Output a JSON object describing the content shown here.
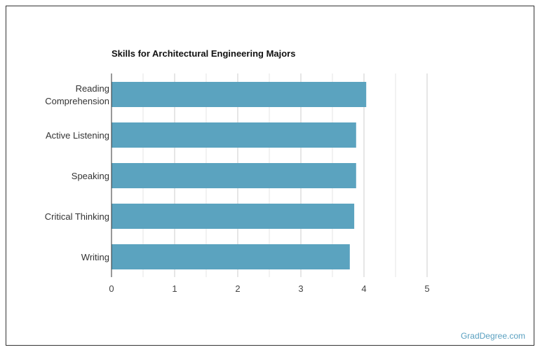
{
  "chart_data": {
    "type": "bar",
    "orientation": "horizontal",
    "title": "Skills for Architectural Engineering Majors",
    "categories": [
      [
        "Reading",
        "Comprehension"
      ],
      [
        "Active Listening"
      ],
      [
        "Speaking"
      ],
      [
        "Critical Thinking"
      ],
      [
        "Writing"
      ]
    ],
    "values": [
      4.03,
      3.87,
      3.87,
      3.84,
      3.77
    ],
    "xlim": [
      0,
      5
    ],
    "xticks": [
      "0",
      "1",
      "2",
      "3",
      "4",
      "5"
    ],
    "grid": true,
    "bar_color": "#5ba3bf"
  },
  "credit": "GradDegree.com"
}
